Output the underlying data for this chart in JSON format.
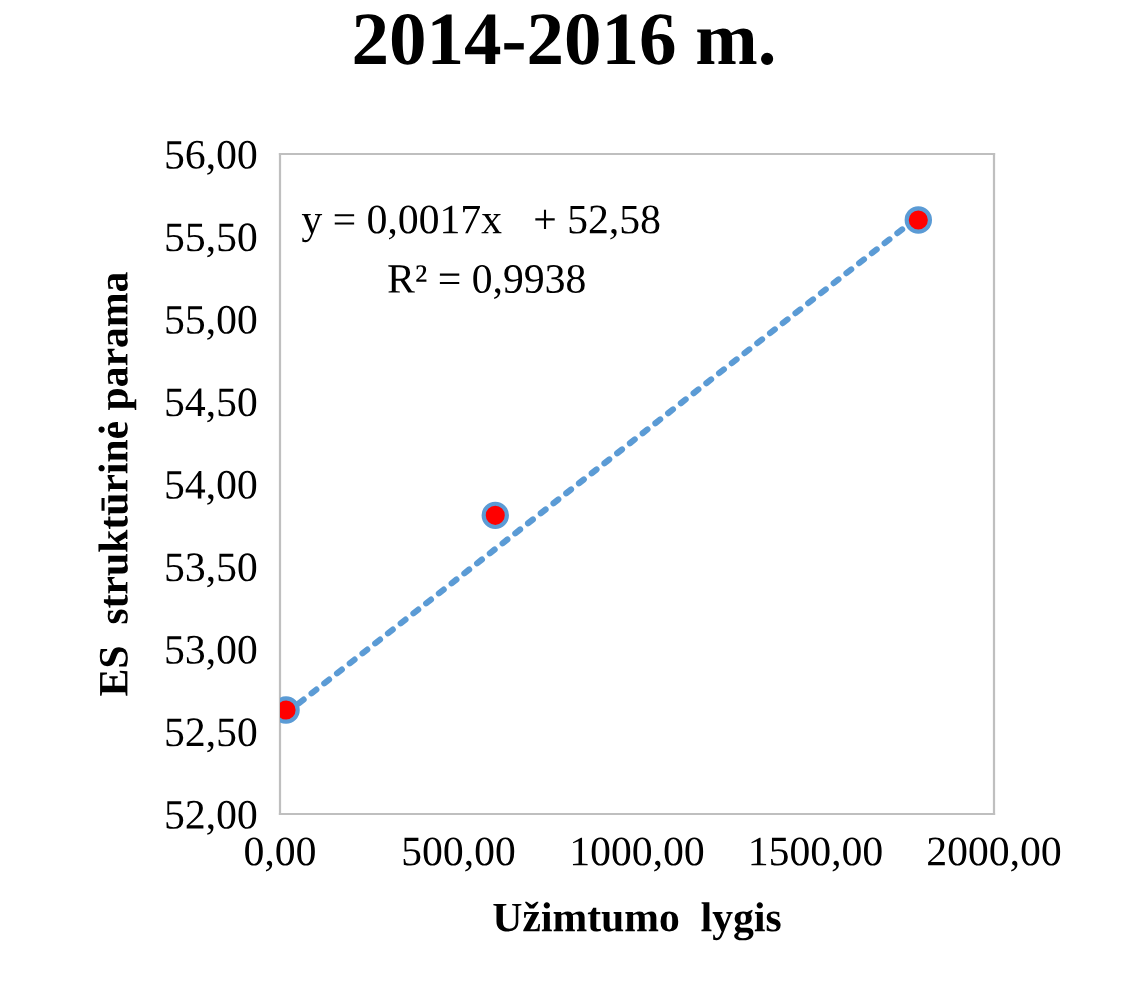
{
  "chart_data": {
    "type": "scatter",
    "title": "2014-2016 m.",
    "xlabel": "Užimtumo  lygis",
    "ylabel": "ES  struktūrinė parama",
    "series": [
      {
        "type": "scatter",
        "x": [
          17,
          603,
          1788
        ],
        "values": [
          52.63,
          53.81,
          55.6
        ],
        "color": "#ff0000",
        "marker": "circle"
      },
      {
        "type": "line",
        "x": [
          17,
          1788
        ],
        "values": [
          52.61,
          55.62
        ],
        "color": "#5b9bd5",
        "line_style": "dotted",
        "marker": "none"
      }
    ],
    "xlim": [
      0,
      2000
    ],
    "ylim": [
      52,
      56
    ],
    "xticks": [
      {
        "value": 0,
        "label": "0,00"
      },
      {
        "value": 500,
        "label": "500,00"
      },
      {
        "value": 1000,
        "label": "1000,00"
      },
      {
        "value": 1500,
        "label": "1500,00"
      },
      {
        "value": 2000,
        "label": "2000,00"
      }
    ],
    "yticks": [
      {
        "value": 52,
        "label": "52,00"
      },
      {
        "value": 52.5,
        "label": "52,50"
      },
      {
        "value": 53,
        "label": "53,00"
      },
      {
        "value": 53.5,
        "label": "53,50"
      },
      {
        "value": 54,
        "label": "54,00"
      },
      {
        "value": 54.5,
        "label": "54,50"
      },
      {
        "value": 55,
        "label": "55,00"
      },
      {
        "value": 55.5,
        "label": "55,50"
      },
      {
        "value": 56,
        "label": "56,00"
      }
    ],
    "annotations": [
      "y = 0,0017x   + 52,58",
      "R² = 0,9938"
    ],
    "grid": false,
    "legend": false
  }
}
